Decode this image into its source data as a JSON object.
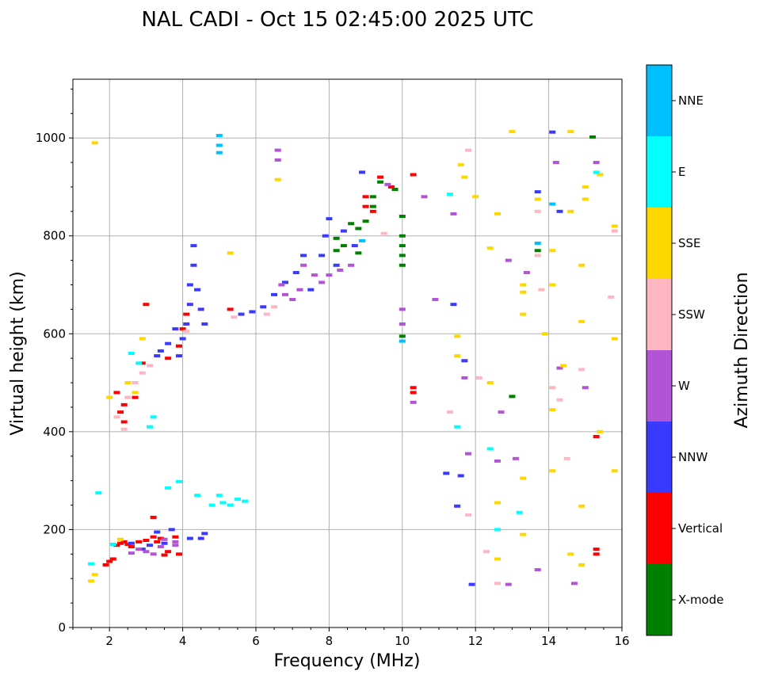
{
  "chart_data": {
    "type": "scatter",
    "title": "NAL CADI - Oct 15 02:45:00 2025 UTC",
    "xlabel": "Frequency (MHz)",
    "ylabel": "Virtual height (km)",
    "xlim": [
      1,
      16
    ],
    "ylim": [
      0,
      1120
    ],
    "xticks": [
      2,
      4,
      6,
      8,
      10,
      12,
      14,
      16
    ],
    "yticks": [
      0,
      200,
      400,
      600,
      800,
      1000
    ],
    "grid": true,
    "colorbar": {
      "label": "Azimuth Direction",
      "categories": [
        {
          "name": "X-mode",
          "color": "#008000"
        },
        {
          "name": "Vertical",
          "color": "#ff0000"
        },
        {
          "name": "NNW",
          "color": "#3a3aff"
        },
        {
          "name": "W",
          "color": "#b354d6"
        },
        {
          "name": "SSW",
          "color": "#ffb6c1"
        },
        {
          "name": "SSE",
          "color": "#ffd700"
        },
        {
          "name": "E",
          "color": "#00ffff"
        },
        {
          "name": "NNE",
          "color": "#00bfff"
        }
      ]
    },
    "series": [
      {
        "name": "X-mode",
        "color": "#008000",
        "points": [
          [
            8.2,
            795
          ],
          [
            8.2,
            770
          ],
          [
            8.4,
            780
          ],
          [
            8.6,
            825
          ],
          [
            8.8,
            815
          ],
          [
            8.8,
            765
          ],
          [
            9.0,
            830
          ],
          [
            9.2,
            880
          ],
          [
            9.2,
            860
          ],
          [
            9.4,
            910
          ],
          [
            9.8,
            895
          ],
          [
            10.0,
            840
          ],
          [
            10.0,
            800
          ],
          [
            10.0,
            780
          ],
          [
            10.0,
            760
          ],
          [
            10.0,
            740
          ],
          [
            10.0,
            595
          ],
          [
            13.0,
            472
          ],
          [
            13.7,
            770
          ],
          [
            15.2,
            1002
          ]
        ]
      },
      {
        "name": "Vertical",
        "color": "#ff0000",
        "points": [
          [
            1.9,
            128
          ],
          [
            2.0,
            135
          ],
          [
            2.1,
            140
          ],
          [
            2.2,
            168
          ],
          [
            2.3,
            172
          ],
          [
            2.4,
            175
          ],
          [
            2.5,
            170
          ],
          [
            2.6,
            165
          ],
          [
            2.8,
            175
          ],
          [
            3.0,
            178
          ],
          [
            3.2,
            185
          ],
          [
            3.3,
            175
          ],
          [
            3.4,
            182
          ],
          [
            3.5,
            148
          ],
          [
            3.6,
            155
          ],
          [
            3.8,
            185
          ],
          [
            3.9,
            150
          ],
          [
            3.2,
            225
          ],
          [
            2.2,
            480
          ],
          [
            2.3,
            440
          ],
          [
            2.4,
            455
          ],
          [
            2.4,
            420
          ],
          [
            2.7,
            470
          ],
          [
            2.9,
            540
          ],
          [
            3.0,
            660
          ],
          [
            3.6,
            550
          ],
          [
            3.9,
            575
          ],
          [
            4.0,
            610
          ],
          [
            4.1,
            640
          ],
          [
            5.3,
            650
          ],
          [
            9.0,
            880
          ],
          [
            9.0,
            860
          ],
          [
            9.2,
            850
          ],
          [
            9.4,
            920
          ],
          [
            9.7,
            900
          ],
          [
            10.3,
            925
          ],
          [
            10.3,
            490
          ],
          [
            10.3,
            480
          ],
          [
            15.3,
            390
          ],
          [
            15.3,
            160
          ],
          [
            15.3,
            150
          ]
        ]
      },
      {
        "name": "NNW",
        "color": "#3a3aff",
        "points": [
          [
            2.6,
            172
          ],
          [
            2.9,
            160
          ],
          [
            3.1,
            168
          ],
          [
            3.3,
            195
          ],
          [
            3.5,
            172
          ],
          [
            3.7,
            200
          ],
          [
            4.2,
            182
          ],
          [
            4.5,
            182
          ],
          [
            4.6,
            192
          ],
          [
            3.3,
            555
          ],
          [
            3.4,
            565
          ],
          [
            3.6,
            580
          ],
          [
            3.8,
            610
          ],
          [
            3.9,
            555
          ],
          [
            4.0,
            590
          ],
          [
            4.1,
            620
          ],
          [
            4.2,
            660
          ],
          [
            4.2,
            700
          ],
          [
            4.3,
            740
          ],
          [
            4.3,
            780
          ],
          [
            4.4,
            690
          ],
          [
            4.5,
            650
          ],
          [
            4.6,
            620
          ],
          [
            5.6,
            640
          ],
          [
            5.9,
            645
          ],
          [
            6.2,
            655
          ],
          [
            6.5,
            680
          ],
          [
            6.8,
            705
          ],
          [
            7.1,
            725
          ],
          [
            7.3,
            760
          ],
          [
            7.5,
            690
          ],
          [
            7.8,
            760
          ],
          [
            7.9,
            800
          ],
          [
            8.0,
            835
          ],
          [
            8.2,
            740
          ],
          [
            8.4,
            810
          ],
          [
            8.7,
            780
          ],
          [
            8.9,
            930
          ],
          [
            11.4,
            660
          ],
          [
            11.7,
            545
          ],
          [
            11.6,
            310
          ],
          [
            11.5,
            248
          ],
          [
            11.9,
            88
          ],
          [
            11.2,
            315
          ],
          [
            13.7,
            890
          ],
          [
            14.1,
            1012
          ],
          [
            14.3,
            850
          ]
        ]
      },
      {
        "name": "W",
        "color": "#b354d6",
        "points": [
          [
            2.6,
            152
          ],
          [
            2.8,
            160
          ],
          [
            3.0,
            155
          ],
          [
            3.2,
            150
          ],
          [
            3.4,
            165
          ],
          [
            3.5,
            180
          ],
          [
            3.8,
            175
          ],
          [
            3.8,
            168
          ],
          [
            6.6,
            975
          ],
          [
            6.6,
            955
          ],
          [
            6.7,
            700
          ],
          [
            6.8,
            680
          ],
          [
            7.0,
            670
          ],
          [
            7.2,
            690
          ],
          [
            7.3,
            740
          ],
          [
            7.6,
            720
          ],
          [
            7.8,
            705
          ],
          [
            8.0,
            720
          ],
          [
            8.3,
            730
          ],
          [
            8.6,
            740
          ],
          [
            9.6,
            905
          ],
          [
            10.0,
            650
          ],
          [
            10.0,
            620
          ],
          [
            10.3,
            460
          ],
          [
            10.6,
            880
          ],
          [
            10.9,
            670
          ],
          [
            11.4,
            845
          ],
          [
            11.7,
            510
          ],
          [
            11.8,
            355
          ],
          [
            12.6,
            340
          ],
          [
            12.7,
            440
          ],
          [
            12.9,
            750
          ],
          [
            13.1,
            345
          ],
          [
            12.9,
            88
          ],
          [
            13.4,
            725
          ],
          [
            13.7,
            118
          ],
          [
            14.2,
            950
          ],
          [
            14.3,
            530
          ],
          [
            14.7,
            90
          ],
          [
            15.0,
            490
          ],
          [
            15.3,
            950
          ]
        ]
      },
      {
        "name": "SSW",
        "color": "#ffb6c1",
        "points": [
          [
            2.2,
            430
          ],
          [
            2.4,
            405
          ],
          [
            2.5,
            470
          ],
          [
            2.7,
            500
          ],
          [
            2.9,
            520
          ],
          [
            3.1,
            535
          ],
          [
            4.1,
            605
          ],
          [
            5.4,
            634
          ],
          [
            6.3,
            640
          ],
          [
            6.5,
            655
          ],
          [
            9.5,
            805
          ],
          [
            11.8,
            975
          ],
          [
            11.3,
            440
          ],
          [
            11.8,
            230
          ],
          [
            12.1,
            510
          ],
          [
            12.3,
            155
          ],
          [
            12.6,
            90
          ],
          [
            13.7,
            850
          ],
          [
            13.7,
            760
          ],
          [
            13.8,
            690
          ],
          [
            14.1,
            490
          ],
          [
            14.3,
            465
          ],
          [
            14.5,
            345
          ],
          [
            14.9,
            527
          ],
          [
            15.7,
            675
          ],
          [
            15.8,
            810
          ]
        ]
      },
      {
        "name": "SSE",
        "color": "#ffd700",
        "points": [
          [
            1.6,
            990
          ],
          [
            2.0,
            470
          ],
          [
            1.6,
            108
          ],
          [
            1.5,
            95
          ],
          [
            2.3,
            180
          ],
          [
            2.5,
            500
          ],
          [
            2.7,
            480
          ],
          [
            2.9,
            590
          ],
          [
            5.3,
            765
          ],
          [
            6.6,
            915
          ],
          [
            11.6,
            945
          ],
          [
            11.7,
            920
          ],
          [
            11.5,
            595
          ],
          [
            11.5,
            555
          ],
          [
            12.0,
            880
          ],
          [
            12.4,
            775
          ],
          [
            12.4,
            500
          ],
          [
            12.6,
            845
          ],
          [
            12.6,
            255
          ],
          [
            12.6,
            140
          ],
          [
            13.0,
            1013
          ],
          [
            13.3,
            700
          ],
          [
            13.3,
            685
          ],
          [
            13.3,
            640
          ],
          [
            13.3,
            305
          ],
          [
            13.3,
            190
          ],
          [
            13.7,
            875
          ],
          [
            13.9,
            600
          ],
          [
            14.1,
            770
          ],
          [
            14.1,
            700
          ],
          [
            14.1,
            445
          ],
          [
            14.1,
            320
          ],
          [
            14.4,
            535
          ],
          [
            14.6,
            1013
          ],
          [
            14.6,
            850
          ],
          [
            14.6,
            150
          ],
          [
            14.9,
            740
          ],
          [
            14.9,
            625
          ],
          [
            14.9,
            248
          ],
          [
            14.9,
            128
          ],
          [
            15.0,
            900
          ],
          [
            15.0,
            875
          ],
          [
            15.4,
            400
          ],
          [
            15.4,
            925
          ],
          [
            15.8,
            820
          ],
          [
            15.8,
            320
          ],
          [
            15.8,
            590
          ]
        ]
      },
      {
        "name": "E",
        "color": "#00ffff",
        "points": [
          [
            1.5,
            130
          ],
          [
            1.7,
            275
          ],
          [
            2.1,
            170
          ],
          [
            2.6,
            560
          ],
          [
            2.8,
            540
          ],
          [
            3.1,
            410
          ],
          [
            3.2,
            430
          ],
          [
            3.6,
            285
          ],
          [
            3.9,
            298
          ],
          [
            4.4,
            270
          ],
          [
            4.8,
            250
          ],
          [
            5.0,
            270
          ],
          [
            5.1,
            255
          ],
          [
            5.3,
            250
          ],
          [
            5.5,
            262
          ],
          [
            5.7,
            258
          ],
          [
            11.3,
            885
          ],
          [
            11.5,
            410
          ],
          [
            12.4,
            365
          ],
          [
            12.6,
            200
          ],
          [
            13.2,
            235
          ],
          [
            15.3,
            930
          ]
        ]
      },
      {
        "name": "NNE",
        "color": "#00bfff",
        "points": [
          [
            5.0,
            1005
          ],
          [
            5.0,
            985
          ],
          [
            5.0,
            970
          ],
          [
            8.9,
            790
          ],
          [
            10.0,
            585
          ],
          [
            13.7,
            785
          ],
          [
            14.1,
            865
          ]
        ]
      }
    ]
  }
}
